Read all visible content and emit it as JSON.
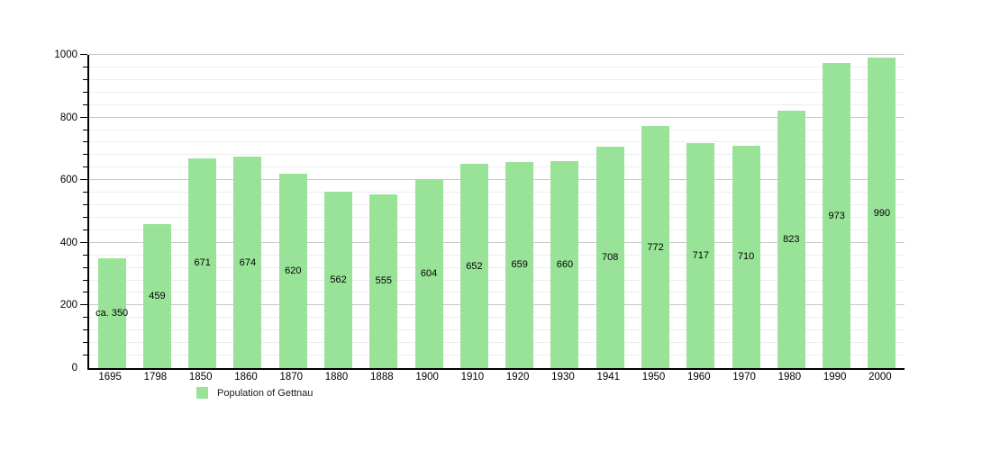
{
  "chart_data": {
    "type": "bar",
    "title": "",
    "legend": "Population of Gettnau",
    "legend_position": "bottom-left",
    "categories": [
      "1695",
      "1798",
      "1850",
      "1860",
      "1870",
      "1880",
      "1888",
      "1900",
      "1910",
      "1920",
      "1930",
      "1941",
      "1950",
      "1960",
      "1970",
      "1980",
      "1990",
      "2000"
    ],
    "values": [
      350,
      459,
      671,
      674,
      620,
      562,
      555,
      604,
      652,
      659,
      660,
      708,
      772,
      717,
      710,
      823,
      973,
      990
    ],
    "bar_labels": [
      "ca. 350",
      "459",
      "671",
      "674",
      "620",
      "562",
      "555",
      "604",
      "652",
      "659",
      "660",
      "708",
      "772",
      "717",
      "710",
      "823",
      "973",
      "990"
    ],
    "xlabel": "",
    "ylabel": "",
    "ylim": [
      0,
      1000
    ],
    "y_major_step": 200,
    "y_minor_step": 40,
    "y_tick_labels": [
      "0",
      "200",
      "400",
      "600",
      "800",
      "1000"
    ],
    "grid": "on",
    "colors": {
      "bar_fill": "#99e399",
      "major_grid": "#c9c9c9",
      "minor_grid": "#ededed",
      "axis": "#000000",
      "background": "#ffffff"
    }
  }
}
